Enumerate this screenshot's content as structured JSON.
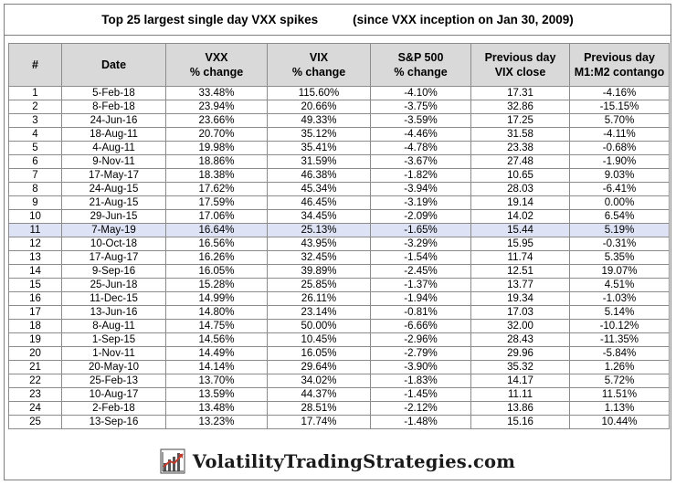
{
  "title": {
    "main": "Top 25 largest single day VXX spikes",
    "note": "(since VXX inception on Jan 30, 2009)"
  },
  "table": {
    "columns": [
      "#",
      "Date",
      "VXX\n% change",
      "VIX\n% change",
      "S&P 500\n% change",
      "Previous day\nVIX close",
      "Previous day\nM1:M2 contango"
    ],
    "rows": [
      [
        "1",
        "5-Feb-18",
        "33.48%",
        "115.60%",
        "-4.10%",
        "17.31",
        "-4.16%"
      ],
      [
        "2",
        "8-Feb-18",
        "23.94%",
        "20.66%",
        "-3.75%",
        "32.86",
        "-15.15%"
      ],
      [
        "3",
        "24-Jun-16",
        "23.66%",
        "49.33%",
        "-3.59%",
        "17.25",
        "5.70%"
      ],
      [
        "4",
        "18-Aug-11",
        "20.70%",
        "35.12%",
        "-4.46%",
        "31.58",
        "-4.11%"
      ],
      [
        "5",
        "4-Aug-11",
        "19.98%",
        "35.41%",
        "-4.78%",
        "23.38",
        "-0.68%"
      ],
      [
        "6",
        "9-Nov-11",
        "18.86%",
        "31.59%",
        "-3.67%",
        "27.48",
        "-1.90%"
      ],
      [
        "7",
        "17-May-17",
        "18.38%",
        "46.38%",
        "-1.82%",
        "10.65",
        "9.03%"
      ],
      [
        "8",
        "24-Aug-15",
        "17.62%",
        "45.34%",
        "-3.94%",
        "28.03",
        "-6.41%"
      ],
      [
        "9",
        "21-Aug-15",
        "17.59%",
        "46.45%",
        "-3.19%",
        "19.14",
        "0.00%"
      ],
      [
        "10",
        "29-Jun-15",
        "17.06%",
        "34.45%",
        "-2.09%",
        "14.02",
        "6.54%"
      ],
      [
        "11",
        "7-May-19",
        "16.64%",
        "25.13%",
        "-1.65%",
        "15.44",
        "5.19%"
      ],
      [
        "12",
        "10-Oct-18",
        "16.56%",
        "43.95%",
        "-3.29%",
        "15.95",
        "-0.31%"
      ],
      [
        "13",
        "17-Aug-17",
        "16.26%",
        "32.45%",
        "-1.54%",
        "11.74",
        "5.35%"
      ],
      [
        "14",
        "9-Sep-16",
        "16.05%",
        "39.89%",
        "-2.45%",
        "12.51",
        "19.07%"
      ],
      [
        "15",
        "25-Jun-18",
        "15.28%",
        "25.85%",
        "-1.37%",
        "13.77",
        "4.51%"
      ],
      [
        "16",
        "11-Dec-15",
        "14.99%",
        "26.11%",
        "-1.94%",
        "19.34",
        "-1.03%"
      ],
      [
        "17",
        "13-Jun-16",
        "14.80%",
        "23.14%",
        "-0.81%",
        "17.03",
        "5.14%"
      ],
      [
        "18",
        "8-Aug-11",
        "14.75%",
        "50.00%",
        "-6.66%",
        "32.00",
        "-10.12%"
      ],
      [
        "19",
        "1-Sep-15",
        "14.56%",
        "10.45%",
        "-2.96%",
        "28.43",
        "-11.35%"
      ],
      [
        "20",
        "1-Nov-11",
        "14.49%",
        "16.05%",
        "-2.79%",
        "29.96",
        "-5.84%"
      ],
      [
        "21",
        "20-May-10",
        "14.14%",
        "29.64%",
        "-3.90%",
        "35.32",
        "1.26%"
      ],
      [
        "22",
        "25-Feb-13",
        "13.70%",
        "34.02%",
        "-1.83%",
        "14.17",
        "5.72%"
      ],
      [
        "23",
        "10-Aug-17",
        "13.59%",
        "44.37%",
        "-1.45%",
        "11.11",
        "11.51%"
      ],
      [
        "24",
        "2-Feb-18",
        "13.48%",
        "28.51%",
        "-2.12%",
        "13.86",
        "1.13%"
      ],
      [
        "25",
        "13-Sep-16",
        "13.23%",
        "17.74%",
        "-1.48%",
        "15.16",
        "10.44%"
      ]
    ],
    "highlight_row": 11,
    "highlight_color": "#dde3f5",
    "header_bg": "#d9d9d9"
  },
  "footer": {
    "brand": "VolatilityTradingStrategies.com",
    "logo_icon": "bar-chart-arrow-icon"
  }
}
